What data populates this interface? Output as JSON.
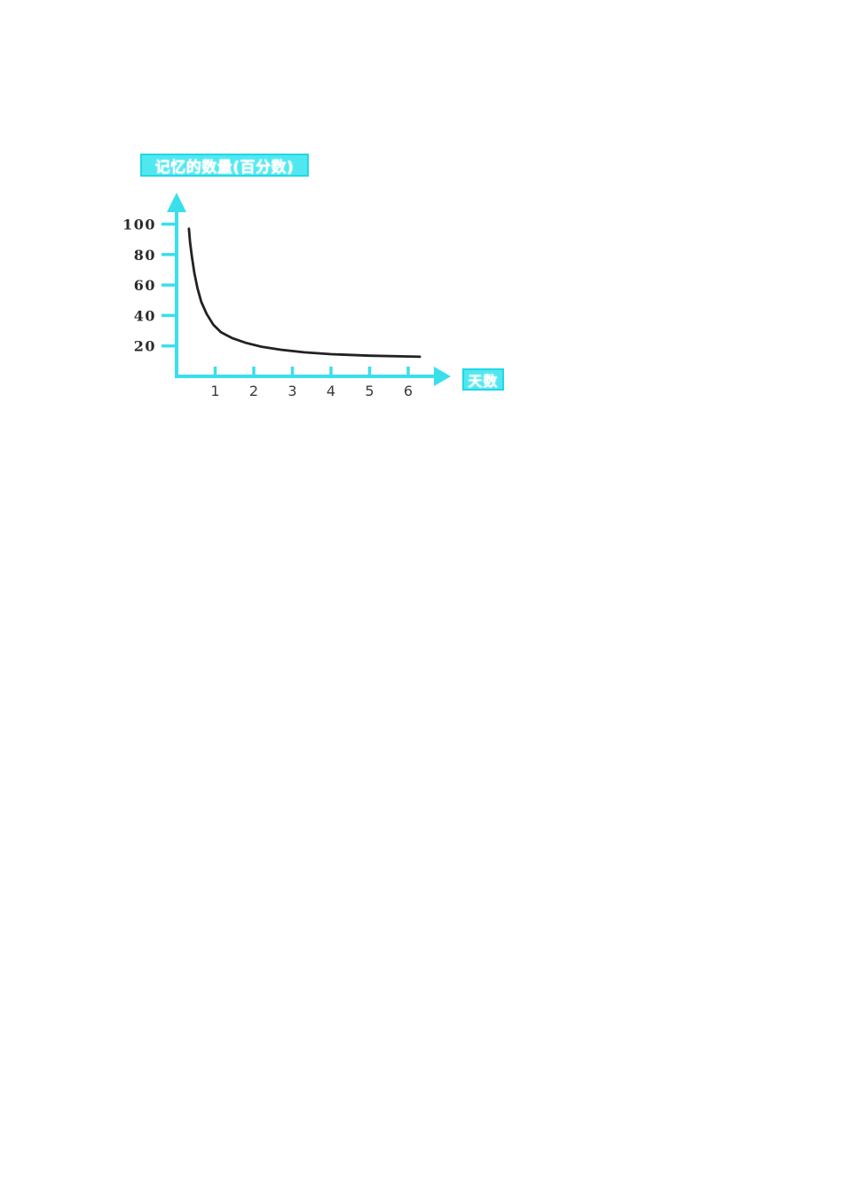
{
  "page": {
    "background": "#ffffff"
  },
  "chart_data": {
    "type": "line",
    "title": "记忆的数量(百分数)",
    "xlabel": "天数",
    "x_ticks": [
      1,
      2,
      3,
      4,
      5,
      6
    ],
    "y_ticks": [
      100,
      80,
      60,
      40,
      20
    ],
    "xlim": [
      0,
      6.8
    ],
    "ylim": [
      0,
      110
    ],
    "grid": false,
    "legend_position": "none",
    "series": [
      {
        "name": "memory-retention-curve",
        "x": [
          0.32,
          0.35,
          0.4,
          0.46,
          0.54,
          0.64,
          0.78,
          0.95,
          1.15,
          1.45,
          1.8,
          2.2,
          2.7,
          3.3,
          4.0,
          5.0,
          6.3
        ],
        "y": [
          97,
          88,
          78,
          68,
          58,
          49,
          41,
          34,
          29,
          25,
          22,
          19.5,
          17.5,
          15.8,
          14.6,
          13.6,
          12.9
        ]
      }
    ],
    "colors": {
      "axis": "#3adfeb",
      "curve": "#222222",
      "y_tick_label": "#2b2b2b",
      "x_tick_label": "#3b3b3b",
      "badge_bg": "#4fe8f1",
      "badge_border": "#22d7e5",
      "badge_text": "#ffffff"
    }
  }
}
